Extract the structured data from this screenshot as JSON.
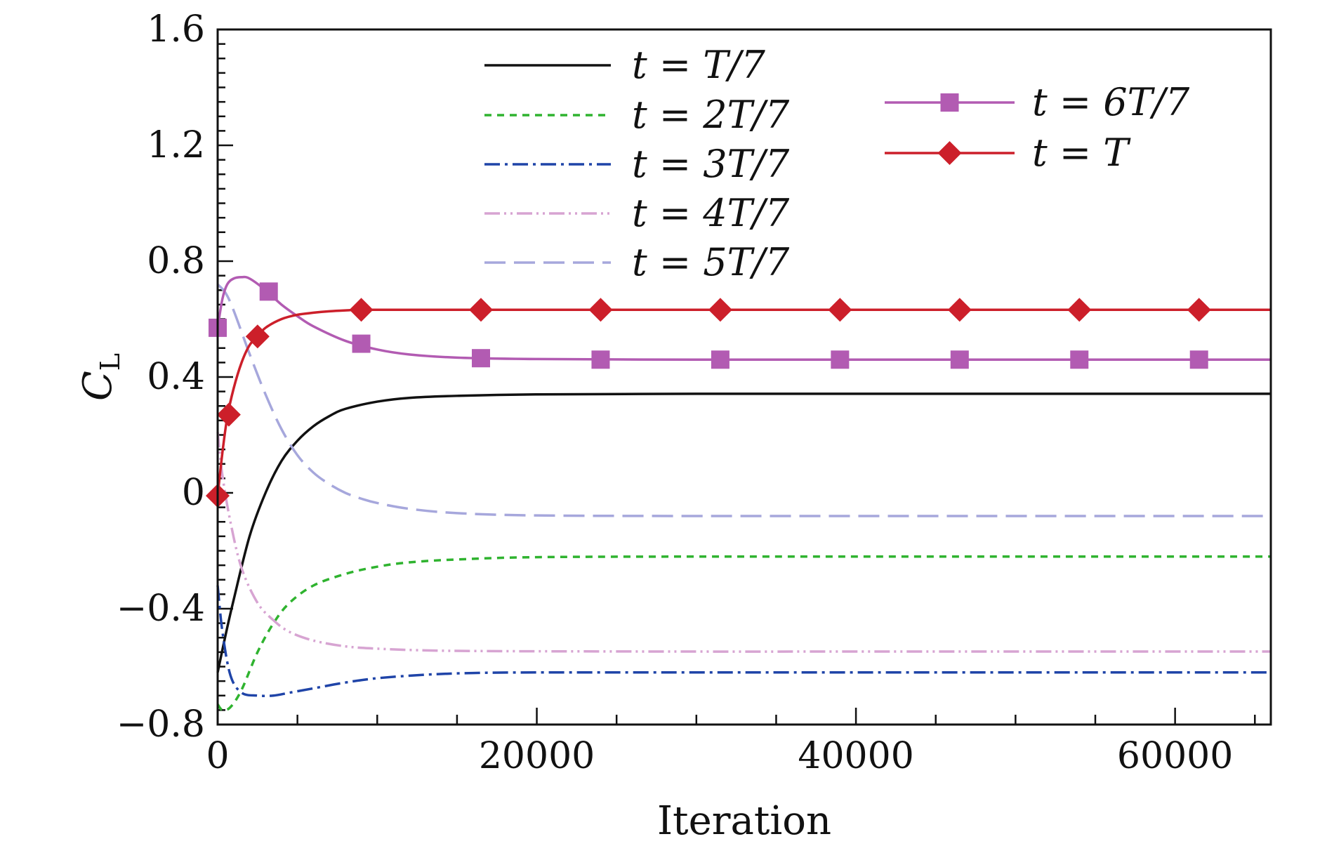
{
  "chart_data": {
    "type": "line",
    "xlabel": "Iteration",
    "ylabel": "C_L",
    "ylabel_main": "C",
    "ylabel_sub": "L",
    "xlim": [
      0,
      66000
    ],
    "ylim": [
      -0.8,
      1.6
    ],
    "xticks": [
      0,
      20000,
      40000,
      60000
    ],
    "xtick_labels": [
      "0",
      "20000",
      "40000",
      "60000"
    ],
    "yticks": [
      -0.8,
      -0.4,
      0,
      0.4,
      0.8,
      1.2,
      1.6
    ],
    "ytick_labels": [
      "−0.8",
      "−0.4",
      "0",
      "0.4",
      "0.8",
      "1.2",
      "1.6"
    ],
    "grid": false,
    "legend_position": "top",
    "series": [
      {
        "name": "t = T/7",
        "color": "#111111",
        "dash": "",
        "marker": "none",
        "x": [
          0,
          500,
          1000,
          2000,
          3000,
          4000,
          5000,
          6000,
          7000,
          8000,
          10000,
          12000,
          15000,
          20000,
          30000,
          40000,
          50000,
          66000
        ],
        "y": [
          -0.62,
          -0.49,
          -0.37,
          -0.15,
          0.0,
          0.11,
          0.18,
          0.23,
          0.265,
          0.29,
          0.315,
          0.328,
          0.335,
          0.34,
          0.342,
          0.342,
          0.342,
          0.342
        ]
      },
      {
        "name": "t = 2T/7",
        "color": "#2fb32f",
        "dash": "10,8",
        "marker": "none",
        "x": [
          0,
          300,
          800,
          1500,
          2500,
          3500,
          4500,
          6000,
          8000,
          10000,
          12000,
          15000,
          20000,
          30000,
          40000,
          66000
        ],
        "y": [
          -0.73,
          -0.75,
          -0.74,
          -0.68,
          -0.55,
          -0.45,
          -0.38,
          -0.32,
          -0.28,
          -0.255,
          -0.24,
          -0.23,
          -0.222,
          -0.22,
          -0.22,
          -0.22
        ]
      },
      {
        "name": "t = 3T/7",
        "color": "#1f44a8",
        "dash": "22,7,4,7",
        "marker": "none",
        "x": [
          0,
          300,
          800,
          1500,
          2500,
          3500,
          4500,
          6000,
          8000,
          10000,
          13000,
          16000,
          20000,
          30000,
          40000,
          66000
        ],
        "y": [
          -0.32,
          -0.48,
          -0.63,
          -0.69,
          -0.7,
          -0.7,
          -0.69,
          -0.675,
          -0.655,
          -0.64,
          -0.628,
          -0.622,
          -0.62,
          -0.62,
          -0.62,
          -0.62
        ]
      },
      {
        "name": "t = 4T/7",
        "color": "#d7a4d2",
        "dash": "22,6,3,6,3,6",
        "marker": "none",
        "x": [
          0,
          300,
          800,
          1500,
          2500,
          3500,
          4500,
          6000,
          8000,
          10000,
          13000,
          16000,
          20000,
          30000,
          40000,
          66000
        ],
        "y": [
          0.21,
          0.06,
          -0.1,
          -0.26,
          -0.38,
          -0.44,
          -0.48,
          -0.51,
          -0.53,
          -0.538,
          -0.544,
          -0.546,
          -0.547,
          -0.548,
          -0.548,
          -0.548
        ]
      },
      {
        "name": "t = 5T/7",
        "color": "#a6a7dc",
        "dash": "30,12",
        "marker": "none",
        "x": [
          0,
          500,
          1000,
          2000,
          3000,
          4000,
          5000,
          6000,
          7000,
          8000,
          9000,
          10000,
          12000,
          15000,
          20000,
          30000,
          40000,
          66000
        ],
        "y": [
          0.72,
          0.69,
          0.63,
          0.48,
          0.34,
          0.22,
          0.13,
          0.07,
          0.03,
          0.0,
          -0.02,
          -0.035,
          -0.055,
          -0.07,
          -0.078,
          -0.08,
          -0.08,
          -0.08
        ]
      },
      {
        "name": "t = 6T/7",
        "color": "#b25bb2",
        "dash": "",
        "marker": "square",
        "x": [
          0,
          300,
          600,
          1000,
          1500,
          2000,
          3000,
          4000,
          5000,
          6000,
          8000,
          10000,
          12000,
          15000,
          20000,
          30000,
          40000,
          66000
        ],
        "y": [
          0.57,
          0.67,
          0.72,
          0.74,
          0.745,
          0.74,
          0.7,
          0.65,
          0.61,
          0.575,
          0.525,
          0.495,
          0.478,
          0.467,
          0.462,
          0.46,
          0.46,
          0.46
        ],
        "marker_x": [
          0,
          3200,
          9000,
          16500,
          24000,
          31500,
          39000,
          46500,
          54000,
          61500
        ],
        "marker_y": [
          0.57,
          0.695,
          0.515,
          0.465,
          0.46,
          0.46,
          0.46,
          0.46,
          0.46,
          0.46
        ]
      },
      {
        "name": "t = T",
        "color": "#cc1f2a",
        "dash": "",
        "marker": "diamond",
        "x": [
          0,
          300,
          600,
          1000,
          1500,
          2000,
          2500,
          3000,
          4000,
          5000,
          6000,
          7000,
          8000,
          9000,
          12000,
          20000,
          40000,
          66000
        ],
        "y": [
          -0.01,
          0.14,
          0.26,
          0.36,
          0.45,
          0.51,
          0.54,
          0.57,
          0.6,
          0.615,
          0.622,
          0.627,
          0.63,
          0.632,
          0.632,
          0.632,
          0.632,
          0.632
        ],
        "marker_x": [
          0,
          700,
          2500,
          9000,
          16500,
          24000,
          31500,
          39000,
          46500,
          54000,
          61500
        ],
        "marker_y": [
          -0.01,
          0.27,
          0.54,
          0.632,
          0.632,
          0.632,
          0.632,
          0.632,
          0.632,
          0.632,
          0.632
        ]
      }
    ]
  }
}
